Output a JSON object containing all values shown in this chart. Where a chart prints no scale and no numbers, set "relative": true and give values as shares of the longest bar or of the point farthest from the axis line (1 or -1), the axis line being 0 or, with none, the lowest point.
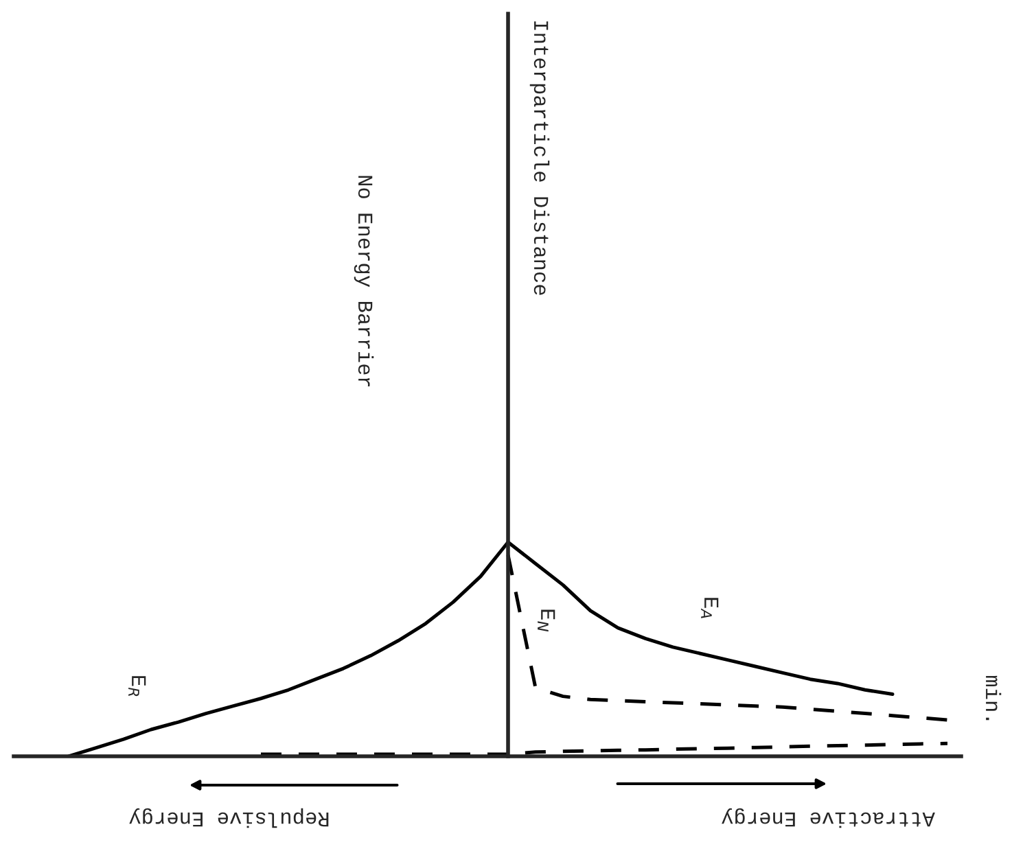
{
  "chart_data": {
    "type": "line",
    "relative": true,
    "marker": "none",
    "categories": [
      null,
      null,
      null,
      null,
      null,
      null,
      null,
      null,
      null,
      null,
      null,
      null,
      null,
      null,
      null,
      null,
      null,
      null,
      null,
      null,
      null,
      null,
      null,
      null,
      null,
      null,
      null,
      null,
      null,
      null,
      null,
      null,
      null
    ],
    "annotations": [
      "Interparticle Distance",
      "No Energy Barrier",
      "Repulsive Energy",
      "Attractive Energy",
      "min."
    ],
    "series": [
      {
        "name": "E$_{R}$",
        "color": "#000000",
        "line_style": "solid",
        "values": [
          0,
          0.04,
          0.08,
          0.125,
          0.16,
          0.2,
          0.235,
          0.27,
          0.31,
          0.36,
          0.41,
          0.47,
          0.54,
          0.62,
          0.72,
          0.84,
          1.0,
          null,
          null,
          null,
          null,
          null,
          null,
          null,
          null,
          null,
          null,
          null,
          null,
          null,
          null,
          null,
          null
        ]
      },
      {
        "name": "E$_{A}$",
        "color": "#000000",
        "line_style": "solid",
        "values": [
          null,
          null,
          null,
          null,
          null,
          null,
          null,
          null,
          null,
          null,
          null,
          null,
          null,
          null,
          null,
          null,
          1.0,
          0.9,
          0.8,
          0.68,
          0.6,
          0.55,
          0.51,
          0.48,
          0.45,
          0.42,
          0.39,
          0.36,
          0.34,
          0.31,
          0.29,
          null,
          null
        ]
      },
      {
        "name": "E$_{N}$",
        "color": "#000000",
        "line_style": "dashed",
        "values": [
          null,
          null,
          null,
          null,
          null,
          null,
          null,
          null,
          null,
          null,
          null,
          null,
          null,
          null,
          null,
          null,
          0.94,
          0.32,
          0.28,
          0.265,
          0.26,
          0.255,
          0.25,
          0.245,
          0.24,
          0.235,
          0.23,
          0.22,
          0.21,
          0.2,
          0.19,
          0.18,
          0.17
        ]
      },
      {
        "color": "#000000",
        "line_style": "dashed",
        "values": [
          null,
          null,
          null,
          null,
          null,
          null,
          null,
          0.01,
          0.01,
          0.01,
          0.01,
          0.01,
          0.01,
          0.01,
          0.01,
          0.01,
          0.01,
          0.02,
          0.023,
          0.025,
          0.028,
          0.03,
          0.033,
          0.036,
          0.038,
          0.041,
          0.044,
          0.047,
          0.05,
          0.052,
          0.055,
          0.058,
          0.06
        ]
      }
    ]
  }
}
